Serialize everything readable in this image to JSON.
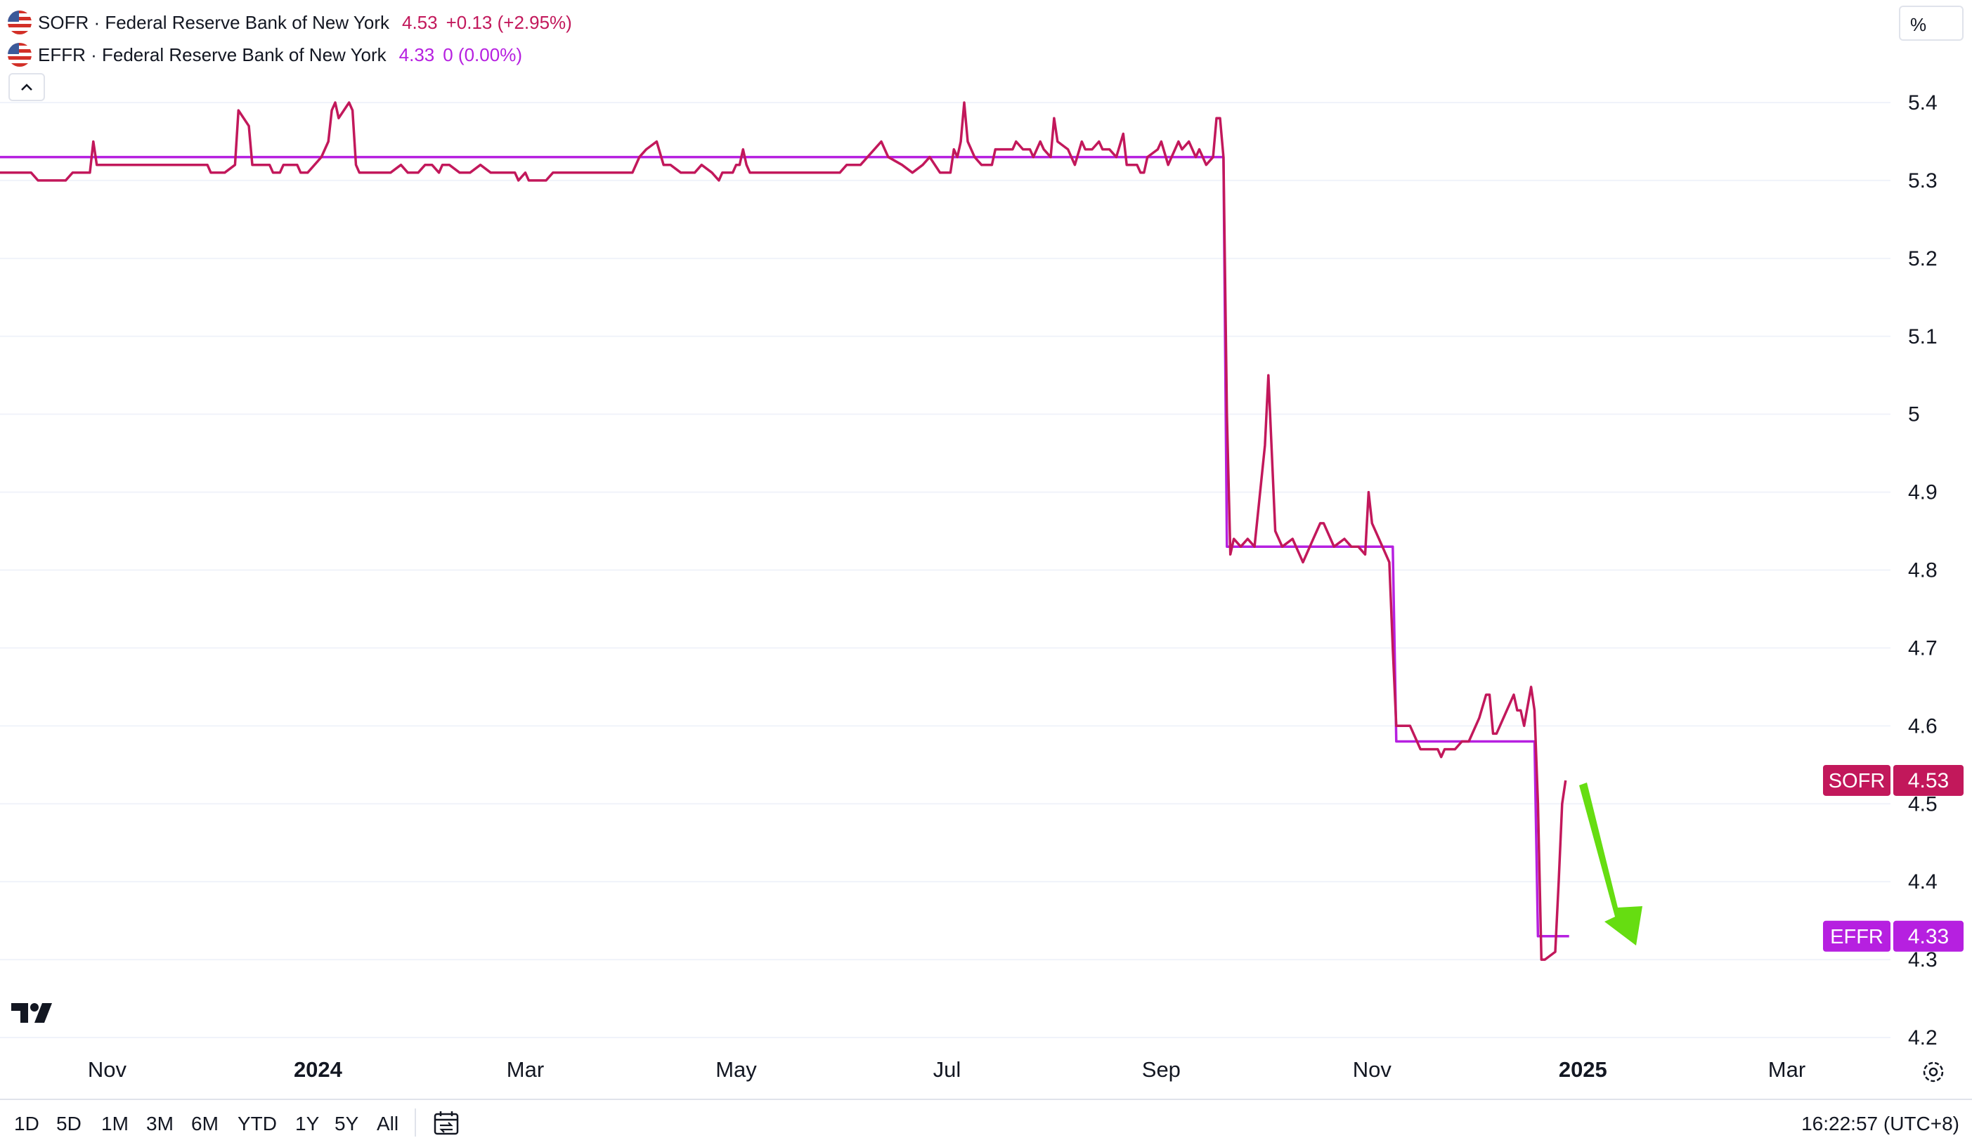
{
  "legend": [
    {
      "name": "SOFR · Federal Reserve Bank of New York",
      "value": "4.53",
      "change": "+0.13 (+2.95%)",
      "color": "#c2185b"
    },
    {
      "name": "EFFR · Federal Reserve Bank of New York",
      "value": "4.33",
      "change": "0 (0.00%)",
      "color": "#b620e0"
    }
  ],
  "unit_label": "%",
  "timeframes": [
    "1D",
    "5D",
    "1M",
    "3M",
    "6M",
    "YTD",
    "1Y",
    "5Y",
    "All"
  ],
  "clock": "16:22:57 (UTC+8)",
  "icons": [
    "us-flag-icon",
    "chevron-up-icon",
    "tradingview-logo-icon",
    "calendar-range-icon",
    "settings-icon",
    "arrow-annotation"
  ],
  "chart_data": {
    "type": "line",
    "title": "",
    "xlabel": "",
    "ylabel": "",
    "x_range": [
      "2023-10-01",
      "2025-03-31"
    ],
    "ylim": [
      4.2,
      5.45
    ],
    "y_ticks": [
      "4.2",
      "4.3",
      "4.4",
      "4.5",
      "4.6",
      "4.7",
      "4.8",
      "4.9",
      "5",
      "5.1",
      "5.2",
      "5.3",
      "5.4"
    ],
    "x_ticks": [
      {
        "label": "Nov",
        "date": "2023-11-01",
        "bold": false
      },
      {
        "label": "2024",
        "date": "2024-01-01",
        "bold": true
      },
      {
        "label": "Mar",
        "date": "2024-03-01",
        "bold": false
      },
      {
        "label": "May",
        "date": "2024-05-01",
        "bold": false
      },
      {
        "label": "Jul",
        "date": "2024-07-01",
        "bold": false
      },
      {
        "label": "Sep",
        "date": "2024-09-01",
        "bold": false
      },
      {
        "label": "Nov",
        "date": "2024-11-01",
        "bold": false
      },
      {
        "label": "2025",
        "date": "2025-01-01",
        "bold": true
      },
      {
        "label": "Mar",
        "date": "2025-03-01",
        "bold": false
      }
    ],
    "grid": true,
    "legend_position": "top-left",
    "series": [
      {
        "name": "SOFR",
        "color": "#c2185b",
        "last_value": "4.53",
        "points": [
          [
            "2023-10-01",
            5.31
          ],
          [
            "2023-10-10",
            5.31
          ],
          [
            "2023-10-12",
            5.3
          ],
          [
            "2023-10-20",
            5.3
          ],
          [
            "2023-10-22",
            5.31
          ],
          [
            "2023-10-27",
            5.31
          ],
          [
            "2023-10-28",
            5.35
          ],
          [
            "2023-10-29",
            5.32
          ],
          [
            "2023-11-30",
            5.32
          ],
          [
            "2023-12-01",
            5.31
          ],
          [
            "2023-12-05",
            5.31
          ],
          [
            "2023-12-08",
            5.32
          ],
          [
            "2023-12-09",
            5.39
          ],
          [
            "2023-12-12",
            5.37
          ],
          [
            "2023-12-13",
            5.32
          ],
          [
            "2023-12-18",
            5.32
          ],
          [
            "2023-12-19",
            5.31
          ],
          [
            "2023-12-21",
            5.31
          ],
          [
            "2023-12-22",
            5.32
          ],
          [
            "2023-12-26",
            5.32
          ],
          [
            "2023-12-27",
            5.31
          ],
          [
            "2023-12-29",
            5.31
          ],
          [
            "2024-01-02",
            5.33
          ],
          [
            "2024-01-04",
            5.35
          ],
          [
            "2024-01-05",
            5.39
          ],
          [
            "2024-01-06",
            5.4
          ],
          [
            "2024-01-07",
            5.38
          ],
          [
            "2024-01-10",
            5.4
          ],
          [
            "2024-01-11",
            5.39
          ],
          [
            "2024-01-12",
            5.32
          ],
          [
            "2024-01-13",
            5.31
          ],
          [
            "2024-01-22",
            5.31
          ],
          [
            "2024-01-25",
            5.32
          ],
          [
            "2024-01-27",
            5.31
          ],
          [
            "2024-01-30",
            5.31
          ],
          [
            "2024-02-01",
            5.32
          ],
          [
            "2024-02-03",
            5.32
          ],
          [
            "2024-02-05",
            5.31
          ],
          [
            "2024-02-06",
            5.32
          ],
          [
            "2024-02-08",
            5.32
          ],
          [
            "2024-02-11",
            5.31
          ],
          [
            "2024-02-14",
            5.31
          ],
          [
            "2024-02-17",
            5.32
          ],
          [
            "2024-02-20",
            5.31
          ],
          [
            "2024-02-26",
            5.31
          ],
          [
            "2024-02-27",
            5.31
          ],
          [
            "2024-02-28",
            5.3
          ],
          [
            "2024-03-01",
            5.31
          ],
          [
            "2024-03-02",
            5.3
          ],
          [
            "2024-03-07",
            5.3
          ],
          [
            "2024-03-09",
            5.31
          ],
          [
            "2024-04-01",
            5.31
          ],
          [
            "2024-04-03",
            5.33
          ],
          [
            "2024-04-05",
            5.34
          ],
          [
            "2024-04-08",
            5.35
          ],
          [
            "2024-04-10",
            5.32
          ],
          [
            "2024-04-12",
            5.32
          ],
          [
            "2024-04-15",
            5.31
          ],
          [
            "2024-04-19",
            5.31
          ],
          [
            "2024-04-21",
            5.32
          ],
          [
            "2024-04-24",
            5.31
          ],
          [
            "2024-04-26",
            5.3
          ],
          [
            "2024-04-27",
            5.31
          ],
          [
            "2024-04-30",
            5.31
          ],
          [
            "2024-05-01",
            5.32
          ],
          [
            "2024-05-02",
            5.32
          ],
          [
            "2024-05-03",
            5.34
          ],
          [
            "2024-05-04",
            5.32
          ],
          [
            "2024-05-05",
            5.31
          ],
          [
            "2024-05-31",
            5.31
          ],
          [
            "2024-06-02",
            5.32
          ],
          [
            "2024-06-06",
            5.32
          ],
          [
            "2024-06-08",
            5.33
          ],
          [
            "2024-06-12",
            5.35
          ],
          [
            "2024-06-14",
            5.33
          ],
          [
            "2024-06-18",
            5.32
          ],
          [
            "2024-06-21",
            5.31
          ],
          [
            "2024-06-24",
            5.32
          ],
          [
            "2024-06-26",
            5.33
          ],
          [
            "2024-06-29",
            5.31
          ],
          [
            "2024-07-02",
            5.31
          ],
          [
            "2024-07-03",
            5.34
          ],
          [
            "2024-07-04",
            5.33
          ],
          [
            "2024-07-05",
            5.35
          ],
          [
            "2024-07-06",
            5.4
          ],
          [
            "2024-07-07",
            5.35
          ],
          [
            "2024-07-09",
            5.33
          ],
          [
            "2024-07-11",
            5.32
          ],
          [
            "2024-07-14",
            5.32
          ],
          [
            "2024-07-15",
            5.34
          ],
          [
            "2024-07-20",
            5.34
          ],
          [
            "2024-07-21",
            5.35
          ],
          [
            "2024-07-23",
            5.34
          ],
          [
            "2024-07-25",
            5.34
          ],
          [
            "2024-07-26",
            5.33
          ],
          [
            "2024-07-28",
            5.35
          ],
          [
            "2024-07-29",
            5.34
          ],
          [
            "2024-07-31",
            5.33
          ],
          [
            "2024-08-01",
            5.38
          ],
          [
            "2024-08-02",
            5.35
          ],
          [
            "2024-08-05",
            5.34
          ],
          [
            "2024-08-07",
            5.32
          ],
          [
            "2024-08-09",
            5.35
          ],
          [
            "2024-08-10",
            5.34
          ],
          [
            "2024-08-12",
            5.34
          ],
          [
            "2024-08-14",
            5.35
          ],
          [
            "2024-08-15",
            5.34
          ],
          [
            "2024-08-17",
            5.34
          ],
          [
            "2024-08-19",
            5.33
          ],
          [
            "2024-08-21",
            5.36
          ],
          [
            "2024-08-22",
            5.32
          ],
          [
            "2024-08-25",
            5.32
          ],
          [
            "2024-08-26",
            5.31
          ],
          [
            "2024-08-27",
            5.31
          ],
          [
            "2024-08-28",
            5.33
          ],
          [
            "2024-08-31",
            5.34
          ],
          [
            "2024-09-01",
            5.35
          ],
          [
            "2024-09-03",
            5.32
          ],
          [
            "2024-09-04",
            5.33
          ],
          [
            "2024-09-06",
            5.35
          ],
          [
            "2024-09-07",
            5.34
          ],
          [
            "2024-09-09",
            5.35
          ],
          [
            "2024-09-11",
            5.33
          ],
          [
            "2024-09-12",
            5.34
          ],
          [
            "2024-09-13",
            5.33
          ],
          [
            "2024-09-14",
            5.32
          ],
          [
            "2024-09-16",
            5.33
          ],
          [
            "2024-09-17",
            5.38
          ],
          [
            "2024-09-18",
            5.38
          ],
          [
            "2024-09-19",
            5.33
          ],
          [
            "2024-09-20",
            5.0
          ],
          [
            "2024-09-21",
            4.82
          ],
          [
            "2024-09-22",
            4.84
          ],
          [
            "2024-09-24",
            4.83
          ],
          [
            "2024-09-26",
            4.84
          ],
          [
            "2024-09-28",
            4.83
          ],
          [
            "2024-10-01",
            4.96
          ],
          [
            "2024-10-02",
            5.05
          ],
          [
            "2024-10-04",
            4.85
          ],
          [
            "2024-10-06",
            4.83
          ],
          [
            "2024-10-09",
            4.84
          ],
          [
            "2024-10-11",
            4.82
          ],
          [
            "2024-10-12",
            4.81
          ],
          [
            "2024-10-15",
            4.84
          ],
          [
            "2024-10-17",
            4.86
          ],
          [
            "2024-10-18",
            4.86
          ],
          [
            "2024-10-21",
            4.83
          ],
          [
            "2024-10-24",
            4.84
          ],
          [
            "2024-10-26",
            4.83
          ],
          [
            "2024-10-28",
            4.83
          ],
          [
            "2024-10-30",
            4.82
          ],
          [
            "2024-10-31",
            4.9
          ],
          [
            "2024-11-01",
            4.86
          ],
          [
            "2024-11-04",
            4.83
          ],
          [
            "2024-11-05",
            4.82
          ],
          [
            "2024-11-06",
            4.81
          ],
          [
            "2024-11-07",
            4.7
          ],
          [
            "2024-11-08",
            4.6
          ],
          [
            "2024-11-12",
            4.6
          ],
          [
            "2024-11-14",
            4.58
          ],
          [
            "2024-11-15",
            4.57
          ],
          [
            "2024-11-18",
            4.57
          ],
          [
            "2024-11-20",
            4.57
          ],
          [
            "2024-11-21",
            4.56
          ],
          [
            "2024-11-22",
            4.57
          ],
          [
            "2024-11-25",
            4.57
          ],
          [
            "2024-11-27",
            4.58
          ],
          [
            "2024-11-29",
            4.58
          ],
          [
            "2024-12-02",
            4.61
          ],
          [
            "2024-12-04",
            4.64
          ],
          [
            "2024-12-05",
            4.64
          ],
          [
            "2024-12-06",
            4.59
          ],
          [
            "2024-12-07",
            4.59
          ],
          [
            "2024-12-10",
            4.62
          ],
          [
            "2024-12-12",
            4.64
          ],
          [
            "2024-12-13",
            4.62
          ],
          [
            "2024-12-14",
            4.62
          ],
          [
            "2024-12-15",
            4.6
          ],
          [
            "2024-12-17",
            4.65
          ],
          [
            "2024-12-18",
            4.62
          ],
          [
            "2024-12-19",
            4.5
          ],
          [
            "2024-12-20",
            4.3
          ],
          [
            "2024-12-21",
            4.3
          ],
          [
            "2024-12-24",
            4.31
          ],
          [
            "2024-12-25",
            4.4
          ],
          [
            "2024-12-26",
            4.5
          ],
          [
            "2024-12-27",
            4.53
          ]
        ]
      },
      {
        "name": "EFFR",
        "color": "#b620e0",
        "last_value": "4.33",
        "points": [
          [
            "2023-10-01",
            5.33
          ],
          [
            "2024-09-19",
            5.33
          ],
          [
            "2024-09-20",
            4.83
          ],
          [
            "2024-11-07",
            4.83
          ],
          [
            "2024-11-08",
            4.58
          ],
          [
            "2024-12-18",
            4.58
          ],
          [
            "2024-12-19",
            4.33
          ],
          [
            "2024-12-28",
            4.33
          ]
        ]
      }
    ],
    "annotations": [
      {
        "type": "arrow",
        "color": "#66dd11",
        "direction": "down"
      }
    ]
  }
}
